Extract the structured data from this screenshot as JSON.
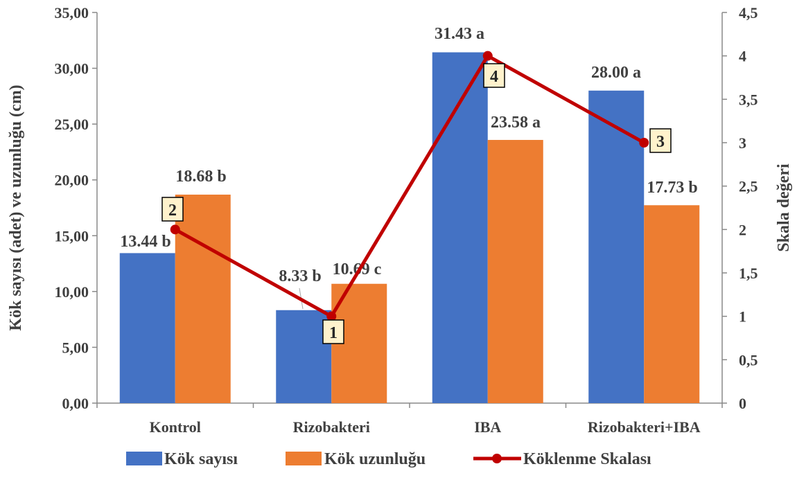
{
  "chart_data": {
    "type": "bar",
    "categories": [
      "Kontrol",
      "Rizobakteri",
      "IBA",
      "Rizobakteri+IBA"
    ],
    "series": [
      {
        "name": "Kök sayısı",
        "type": "bar",
        "axis": "left",
        "color": "#4472C4",
        "values": [
          13.44,
          8.33,
          31.43,
          28.0
        ],
        "labels": [
          "13.44 b",
          "8.33 b",
          "31.43 a",
          "28.00 a"
        ]
      },
      {
        "name": "Kök uzunluğu",
        "type": "bar",
        "axis": "left",
        "color": "#ED7D31",
        "values": [
          18.68,
          10.69,
          23.58,
          17.73
        ],
        "labels": [
          "18.68 b",
          "10.69 c",
          "23.58 a",
          "17.73 b"
        ]
      },
      {
        "name": "Köklenme Skalası",
        "type": "line",
        "axis": "right",
        "color": "#C00000",
        "values": [
          2,
          1,
          4,
          3
        ],
        "labels": [
          "2",
          "1",
          "4",
          "3"
        ]
      }
    ],
    "ylabel": "Kök sayısı (adet) ve uzunluğu (cm)",
    "y2label": "Skala değeri",
    "ylim": [
      0,
      35
    ],
    "y2lim": [
      0,
      4.5
    ],
    "yticks": [
      "0,00",
      "5,00",
      "10,00",
      "15,00",
      "20,00",
      "25,00",
      "30,00",
      "35,00"
    ],
    "y2ticks": [
      "0",
      "0,5",
      "1",
      "1,5",
      "2",
      "2,5",
      "3",
      "3,5",
      "4",
      "4,5"
    ],
    "grid": false,
    "legend_position": "bottom",
    "label_box_color": "#FFF2CC"
  }
}
